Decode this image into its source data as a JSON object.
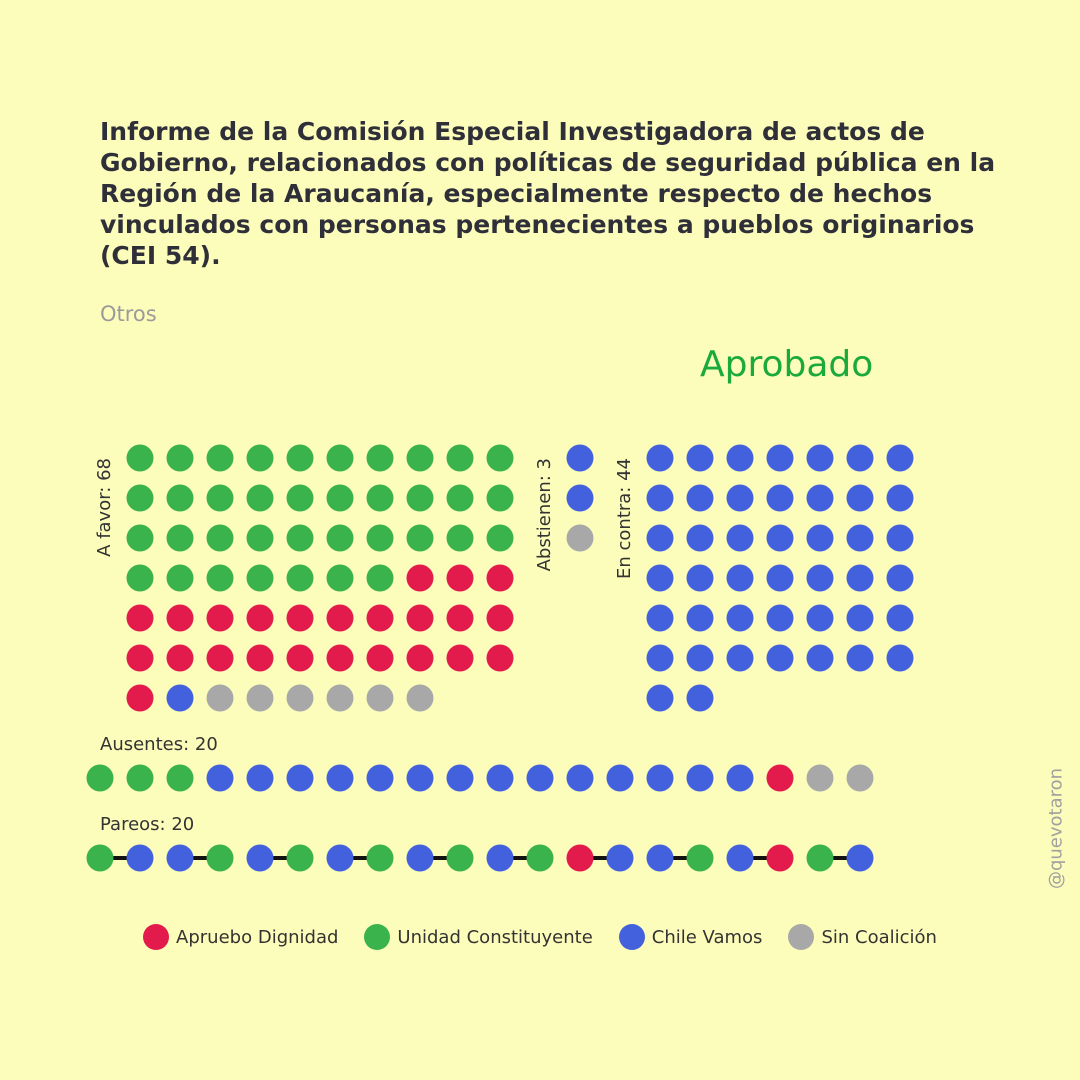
{
  "title": "Informe de la Comisión Especial Investigadora de actos de Gobierno, relacionados con políticas de seguridad pública en la Región de la Araucanía, especialmente respecto de hechos vinculados con personas pertenecientes a pueblos originarios (CEI 54).",
  "category": "Otros",
  "result": "Aprobado",
  "credit": "@quevotaron",
  "colors": {
    "apruebo": "#e31a4c",
    "unidad": "#3ab34d",
    "chile": "#4361dd",
    "sin": "#a8a8a8",
    "result": "#1aaa3c",
    "background": "#fdfdbb"
  },
  "legend": [
    {
      "key": "apruebo",
      "label": "Apruebo Dignidad"
    },
    {
      "key": "unidad",
      "label": "Unidad Constituyente"
    },
    {
      "key": "chile",
      "label": "Chile Vamos"
    },
    {
      "key": "sin",
      "label": "Sin Coalición"
    }
  ],
  "chart_data": {
    "type": "waffle",
    "groups": [
      {
        "id": "favor",
        "label": "A favor: 68",
        "total": 68,
        "columns": 10,
        "counts": {
          "unidad": 37,
          "apruebo": 24,
          "chile": 1,
          "sin": 6
        },
        "sequence": [
          "unidad",
          "unidad",
          "unidad",
          "unidad",
          "unidad",
          "unidad",
          "unidad",
          "unidad",
          "unidad",
          "unidad",
          "unidad",
          "unidad",
          "unidad",
          "unidad",
          "unidad",
          "unidad",
          "unidad",
          "unidad",
          "unidad",
          "unidad",
          "unidad",
          "unidad",
          "unidad",
          "unidad",
          "unidad",
          "unidad",
          "unidad",
          "unidad",
          "unidad",
          "unidad",
          "unidad",
          "unidad",
          "unidad",
          "unidad",
          "unidad",
          "unidad",
          "unidad",
          "apruebo",
          "apruebo",
          "apruebo",
          "apruebo",
          "apruebo",
          "apruebo",
          "apruebo",
          "apruebo",
          "apruebo",
          "apruebo",
          "apruebo",
          "apruebo",
          "apruebo",
          "apruebo",
          "apruebo",
          "apruebo",
          "apruebo",
          "apruebo",
          "apruebo",
          "apruebo",
          "apruebo",
          "apruebo",
          "apruebo",
          "apruebo",
          "chile",
          "sin",
          "sin",
          "sin",
          "sin",
          "sin",
          "sin"
        ]
      },
      {
        "id": "abstienen",
        "label": "Abstienen: 3",
        "total": 3,
        "columns": 1,
        "counts": {
          "chile": 2,
          "sin": 1
        },
        "sequence": [
          "chile",
          "chile",
          "sin"
        ]
      },
      {
        "id": "contra",
        "label": "En contra: 44",
        "total": 44,
        "columns": 7,
        "counts": {
          "chile": 44
        },
        "sequence": [
          "chile",
          "chile",
          "chile",
          "chile",
          "chile",
          "chile",
          "chile",
          "chile",
          "chile",
          "chile",
          "chile",
          "chile",
          "chile",
          "chile",
          "chile",
          "chile",
          "chile",
          "chile",
          "chile",
          "chile",
          "chile",
          "chile",
          "chile",
          "chile",
          "chile",
          "chile",
          "chile",
          "chile",
          "chile",
          "chile",
          "chile",
          "chile",
          "chile",
          "chile",
          "chile",
          "chile",
          "chile",
          "chile",
          "chile",
          "chile",
          "chile",
          "chile",
          "chile",
          "chile"
        ]
      }
    ],
    "ausentes": {
      "label": "Ausentes: 20",
      "total": 20,
      "sequence": [
        "unidad",
        "unidad",
        "unidad",
        "chile",
        "chile",
        "chile",
        "chile",
        "chile",
        "chile",
        "chile",
        "chile",
        "chile",
        "chile",
        "chile",
        "chile",
        "chile",
        "chile",
        "apruebo",
        "sin",
        "sin"
      ]
    },
    "pareos": {
      "label": "Pareos: 20",
      "total": 20,
      "pairs": [
        [
          "unidad",
          "chile"
        ],
        [
          "chile",
          "unidad"
        ],
        [
          "chile",
          "unidad"
        ],
        [
          "chile",
          "unidad"
        ],
        [
          "chile",
          "unidad"
        ],
        [
          "chile",
          "unidad"
        ],
        [
          "apruebo",
          "chile"
        ],
        [
          "chile",
          "unidad"
        ],
        [
          "chile",
          "apruebo"
        ],
        [
          "unidad",
          "chile"
        ]
      ]
    }
  }
}
